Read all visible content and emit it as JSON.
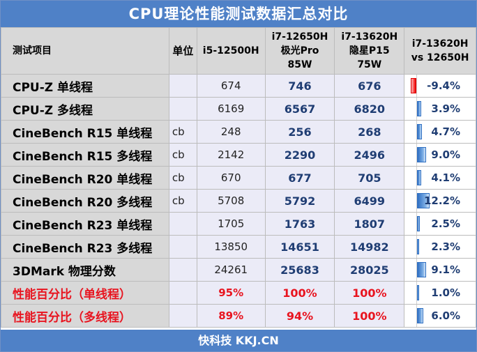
{
  "title": "CPU理论性能测试数据汇总对比",
  "footer": "快科技 KKJ.CN",
  "colors": {
    "accent": "#4f81c7",
    "positive_bar": "#2f6fc2",
    "negative_bar": "#e00000",
    "highlight_text": "#e8141f"
  },
  "table": {
    "headers": {
      "item": "测试项目",
      "unit": "单位",
      "col0": "i5-12500H",
      "col1": [
        "i7-12650H",
        "极光Pro",
        "85W"
      ],
      "col2": [
        "i7-13620H",
        "隐星P15",
        "75W"
      ],
      "cmp": [
        "i7-13620H",
        "vs 12650H"
      ]
    }
  },
  "chart_data": {
    "type": "table",
    "title": "CPU理论性能测试数据汇总对比",
    "columns": [
      "测试项目",
      "单位",
      "i5-12500H",
      "i7-12650H 极光Pro 85W",
      "i7-13620H 隐星P15 75W",
      "i7-13620H vs 12650H"
    ],
    "rows": [
      {
        "item": "CPU-Z 单线程",
        "unit": "",
        "v0": "674",
        "v1": "746",
        "v2": "676",
        "cmp": "-9.4%",
        "cmp_value": -9.4,
        "red": false
      },
      {
        "item": "CPU-Z 多线程",
        "unit": "",
        "v0": "6169",
        "v1": "6567",
        "v2": "6820",
        "cmp": "3.9%",
        "cmp_value": 3.9,
        "red": false
      },
      {
        "item": "CineBench R15 单线程",
        "unit": "cb",
        "v0": "248",
        "v1": "256",
        "v2": "268",
        "cmp": "4.7%",
        "cmp_value": 4.7,
        "red": false
      },
      {
        "item": "CineBench R15 多线程",
        "unit": "cb",
        "v0": "2142",
        "v1": "2290",
        "v2": "2496",
        "cmp": "9.0%",
        "cmp_value": 9.0,
        "red": false
      },
      {
        "item": "CineBench R20 单线程",
        "unit": "cb",
        "v0": "670",
        "v1": "677",
        "v2": "705",
        "cmp": "4.1%",
        "cmp_value": 4.1,
        "red": false
      },
      {
        "item": "CineBench R20 多线程",
        "unit": "cb",
        "v0": "5708",
        "v1": "5792",
        "v2": "6499",
        "cmp": "12.2%",
        "cmp_value": 12.2,
        "red": false
      },
      {
        "item": "CineBench R23 单线程",
        "unit": "",
        "v0": "1705",
        "v1": "1763",
        "v2": "1807",
        "cmp": "2.5%",
        "cmp_value": 2.5,
        "red": false
      },
      {
        "item": "CineBench R23 多线程",
        "unit": "",
        "v0": "13850",
        "v1": "14651",
        "v2": "14982",
        "cmp": "2.3%",
        "cmp_value": 2.3,
        "red": false
      },
      {
        "item": "3DMark 物理分数",
        "unit": "",
        "v0": "24261",
        "v1": "25683",
        "v2": "28025",
        "cmp": "9.1%",
        "cmp_value": 9.1,
        "red": false
      },
      {
        "item": "性能百分比（单线程）",
        "unit": "",
        "v0": "95%",
        "v1": "100%",
        "v2": "100%",
        "cmp": "1.0%",
        "cmp_value": 1.0,
        "red": true
      },
      {
        "item": "性能百分比（多线程）",
        "unit": "",
        "v0": "89%",
        "v1": "94%",
        "v2": "100%",
        "cmp": "6.0%",
        "cmp_value": 6.0,
        "red": true
      }
    ]
  }
}
